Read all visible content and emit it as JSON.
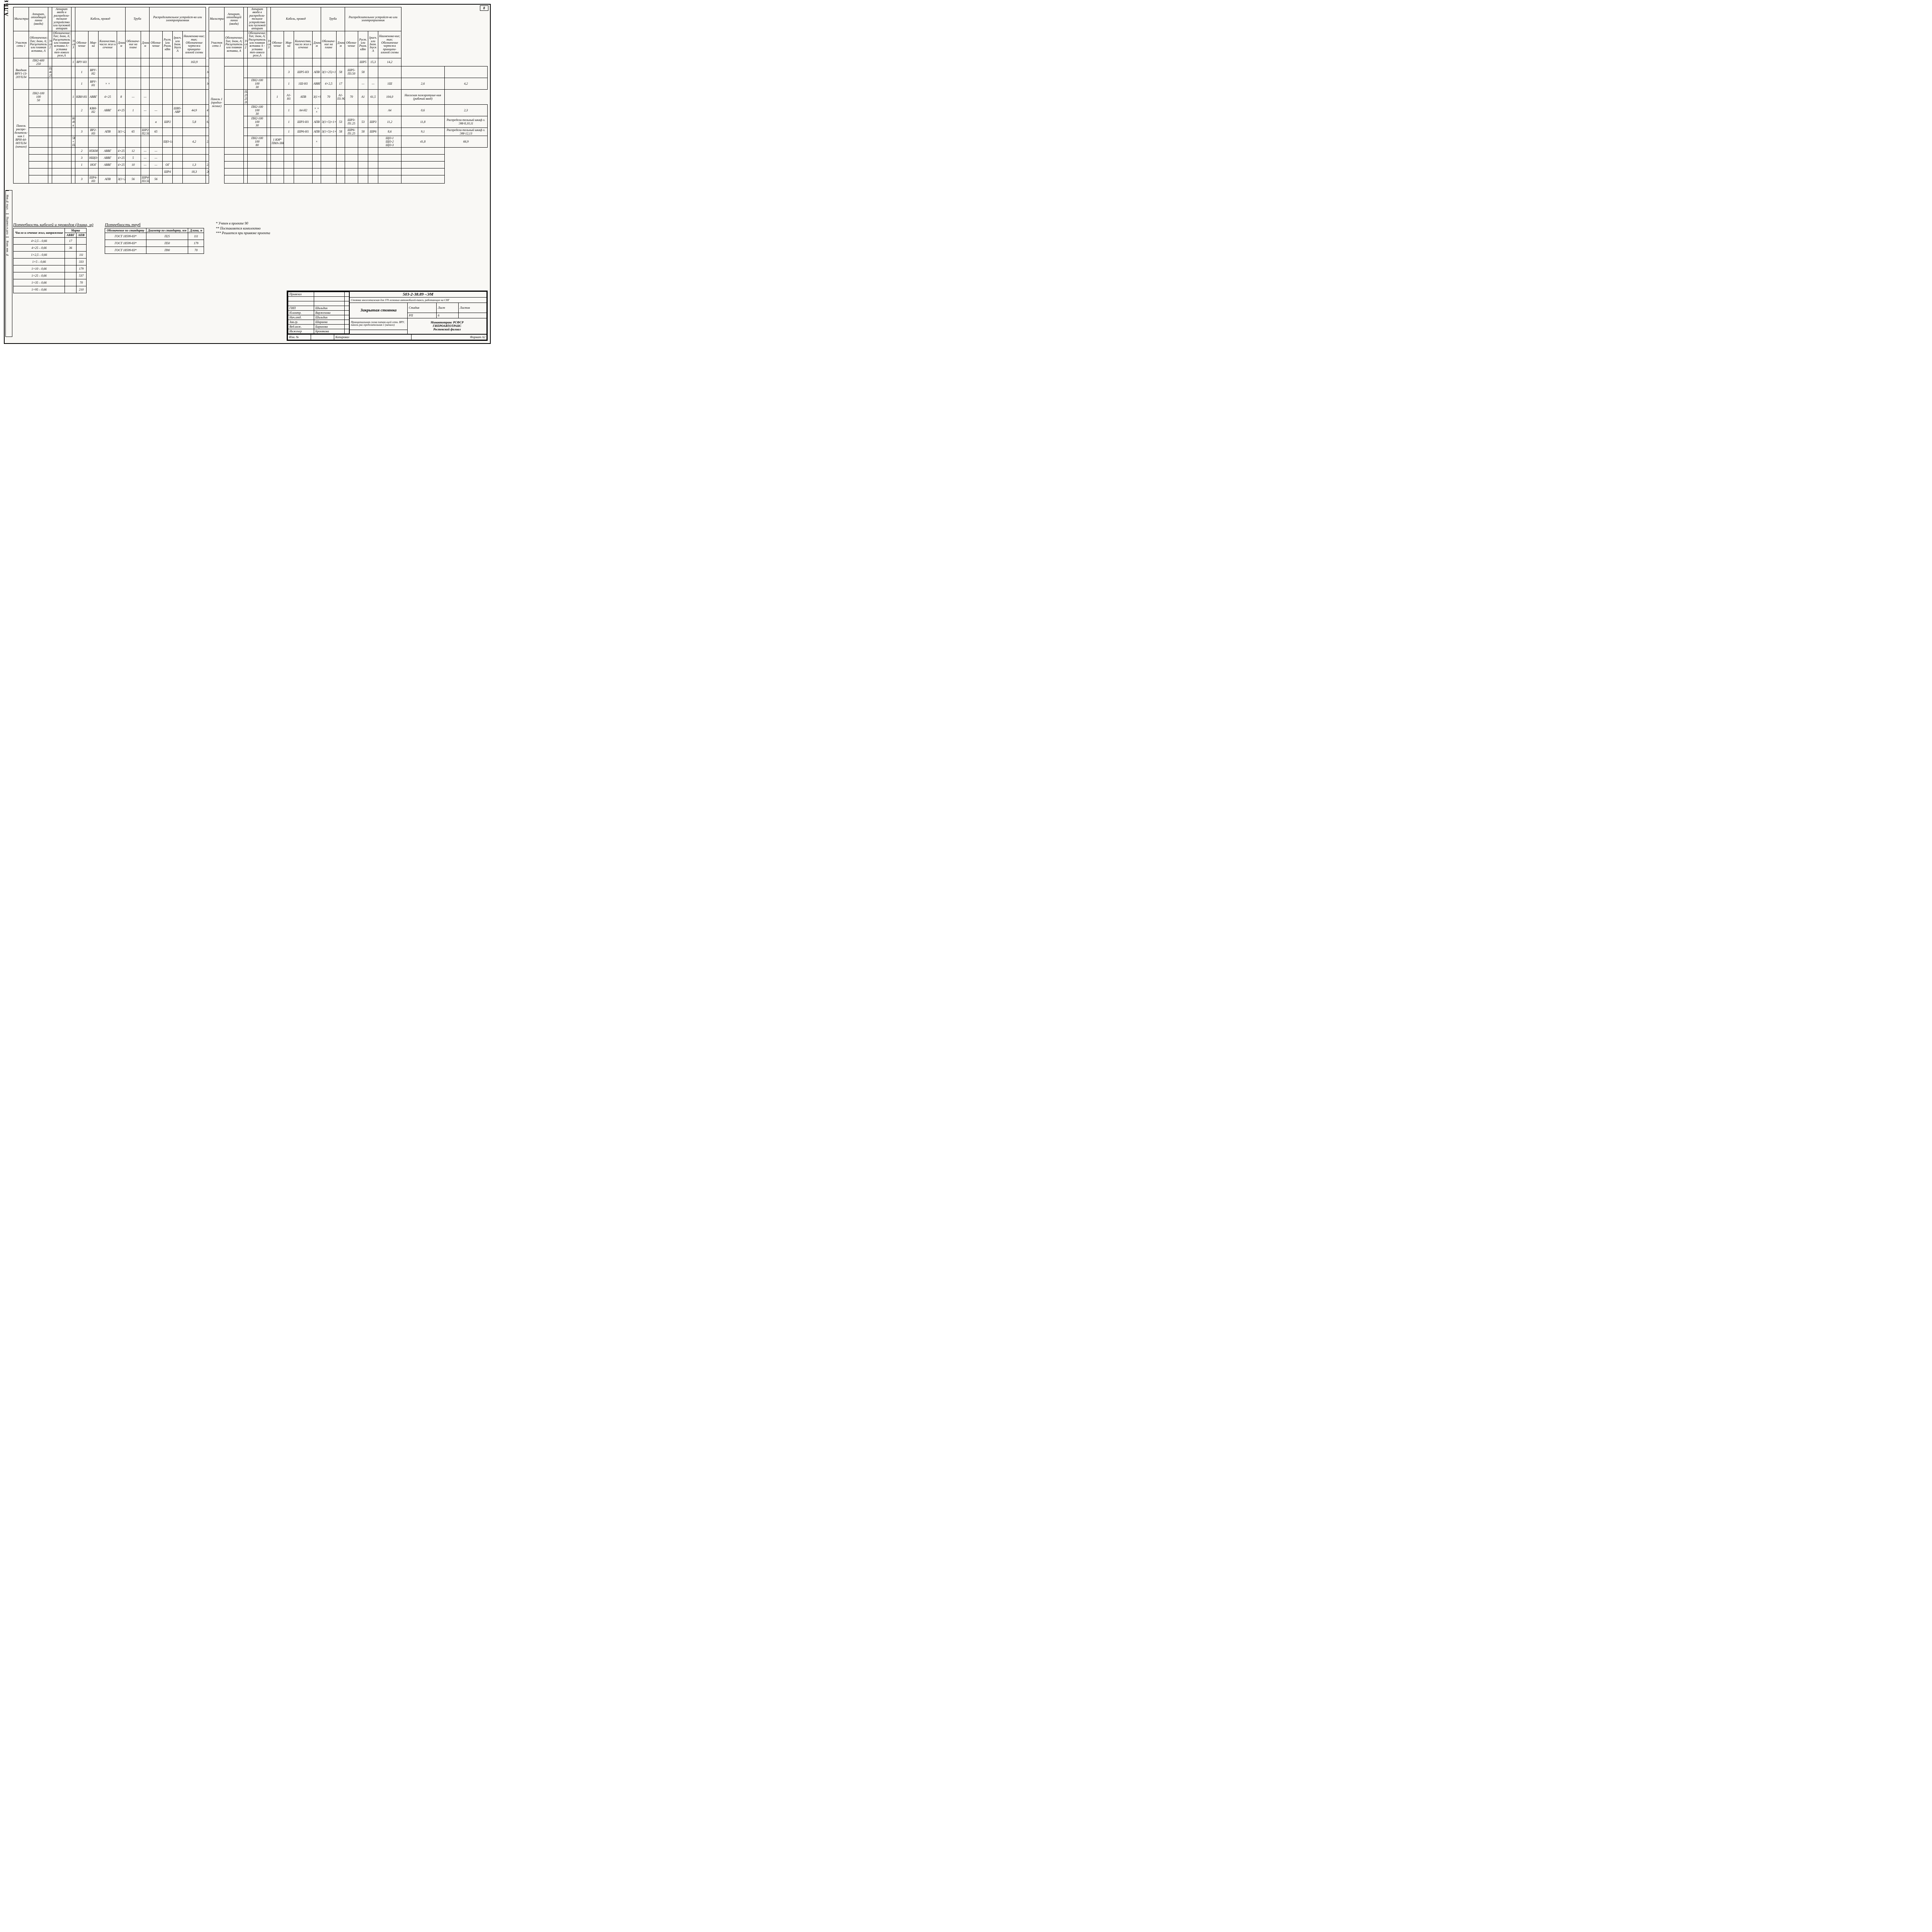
{
  "album_label": "АЛЬБОМ 2",
  "page_number": "8",
  "left_strip": [
    "Инв.№ подл.",
    "Подпись и дата",
    "Взам. инв. №"
  ],
  "header_groups": [
    "Магистраль",
    "Аппарат, отходящей линии (ввода)",
    "Аппарат ввода в распредели-тельное устройство или пусковой аппарат",
    "Кабель, провод",
    "Труба",
    "Распределительное устройст-во или электроприемник"
  ],
  "sub_headers": [
    "Участок сети 1",
    "Обозначение; Тип; Iном, А; Расцепитель или плавкая вставка, А",
    "Участок сети 2",
    "Обозначение; Тип; Iном, А; Расцепитель или плавкая вставка А - уставка теп-лового реле,А",
    "Участок сети 3",
    "Обозна-чение",
    "Мар-ка",
    "Количество, число жил и сечение",
    "Длина, м",
    "Обозначе-ние на плане",
    "Длина, м",
    "Обозна-чение",
    "Pуст. или Pном. кВт",
    "Iрасч. или Iном. Iпуск А",
    "Наименова-ние; тип; Обозначение чертежа принципи-альной схемы"
  ],
  "row_groups": [
    {
      "left_label": "Вводная ВРУ1-13-20УХЛ4",
      "rows": [
        {
          "c": [
            "",
            "ПН2-400\n250",
            "",
            "",
            "1",
            "ВРУ-Н1",
            "",
            "",
            "",
            "",
            "",
            "",
            "",
            "",
            "163,9",
            "205,1",
            "Ввод от"
          ]
        },
        {
          "c": [
            "",
            "ПН2-400\n250",
            "",
            "",
            "1",
            "ВРУ-Н2",
            "",
            "",
            "",
            "",
            "",
            "",
            "",
            "",
            "163,9",
            "205,1",
            "Ввод от"
          ]
        },
        {
          "c": [
            "",
            "",
            "",
            "",
            "1",
            "ВРУ-Н1",
            "× ×",
            "",
            "",
            "",
            "",
            "",
            "",
            "",
            "109,5",
            "134,3",
            "Ввод от ВРУ"
          ]
        }
      ]
    },
    {
      "left_label": "Панель распре-делитель-ная 1 ВРН-44-00УХЛ4 (начало)",
      "rows": [
        {
          "c": [
            "",
            "ПН2-100\n100\n50",
            "",
            "",
            "1",
            "КВН-Н1",
            "АВВГ",
            "4×25",
            "8",
            "—",
            "—",
            "",
            "",
            "",
            "",
            "",
            "Шкаф авто-матическо-"
          ]
        },
        {
          "c": [
            "",
            "",
            "",
            "",
            "2",
            "КВН-Н2",
            "АВВГ",
            "4×25",
            "1",
            "—",
            "—",
            "",
            "ШВ5-АВР",
            "44,9",
            "47,7",
            "",
            "го переклю-чения на резерв"
          ]
        },
        {
          "c": [
            "",
            "",
            "",
            "К01\n4994\nа",
            "",
            "",
            "",
            "",
            "",
            "",
            "а",
            "ШР2",
            "",
            "5,8",
            "6,0",
            "",
            "Распредели-тельный шкаф л. ЭМ-8,9"
          ]
        },
        {
          "c": [
            "",
            "",
            "",
            "",
            "3",
            "ВР2-Н3",
            "АПВ",
            "3(1×25)+1×10",
            "65",
            "ШР2-П2.50",
            "65",
            "",
            "",
            "",
            "",
            "",
            ""
          ]
        },
        {
          "c": [
            "",
            "",
            "",
            "5КМ +\nПМА-1Н002",
            "",
            "",
            "",
            "",
            "",
            "",
            "",
            "ЩО-1г",
            "",
            "4,2",
            "2,1",
            "",
            "Взрывобезо-пасное осве-щение л. 90-5"
          ]
        },
        {
          "c": [
            "",
            "",
            "",
            "",
            "2",
            "Н5КМ",
            "АВВГ",
            "4×25",
            "12",
            "—",
            "—",
            "",
            "",
            "",
            "",
            "",
            ""
          ]
        },
        {
          "c": [
            "",
            "",
            "",
            "",
            "3",
            "НЩО-1г",
            "АВВГ",
            "4×25",
            "5",
            "—",
            "—",
            "",
            "",
            "",
            "",
            "",
            ""
          ]
        },
        {
          "c": [
            "",
            "",
            "",
            "",
            "1",
            "НОГ",
            "АВВГ",
            "4×25",
            "10",
            "—",
            "—",
            "ОГ",
            "",
            "1,3",
            "2,2",
            "",
            "Световые указатели л. 90-5"
          ]
        },
        {
          "c": [
            "",
            "",
            "",
            "",
            "",
            "",
            "",
            "",
            "",
            "",
            "",
            "ШР4",
            "",
            "18,3",
            "20,4",
            "",
            "Распредели-тельный шкаф л. ЭМ-11"
          ]
        },
        {
          "c": [
            "",
            "",
            "",
            "",
            "3",
            "ШР4-Н3",
            "АПВ",
            "3(1×25)+1×10",
            "56",
            "ШР4-П3.50",
            "56",
            "",
            "",
            "",
            "",
            "",
            ""
          ]
        }
      ]
    }
  ],
  "right_panel_label": "Панель 1 (продол-жение)",
  "right_rows": [
    {
      "c": [
        "",
        "",
        "",
        "",
        "",
        "",
        "",
        "",
        "",
        "",
        "",
        "",
        "ШР5",
        "15,3",
        "14,2",
        "Распредели-тельный шкаф л. ЭМ-11,12"
      ]
    },
    {
      "c": [
        "",
        "",
        "",
        "",
        "3",
        "ШР5-Н3",
        "АПВ",
        "3(1×25)+1×10",
        "58",
        "ШР5-П3.50",
        "58",
        "",
        "",
        "",
        "",
        ""
      ]
    },
    {
      "c": [
        "",
        "ПН2-100\n100\n30",
        "",
        "",
        "1",
        "1Ш-Н1",
        "АВВГ",
        "4×2,5",
        "17",
        "",
        "—",
        "—",
        "1Ш",
        "2,6",
        "4,2",
        "Шкаф л. АСТ-10"
      ]
    },
    {
      "c": [
        "",
        "ПН2-250\n250\n200",
        "",
        "",
        "1",
        "А1-Н1",
        "АПВ",
        "3(1×95)+1×35",
        "70",
        "А1-П1.90",
        "70",
        "А1",
        "61,5",
        "104,0",
        "Насосная пожаротуше-ния (рабочий ввод)"
      ]
    },
    {
      "c": [
        "",
        "ПН2-100\n100\n30",
        "",
        "",
        "1",
        "А4-Н2",
        "× × ×",
        "",
        "",
        "",
        "",
        "",
        "А4",
        "0,6",
        "2,3",
        "Ящик (установл. в КПП)"
      ]
    },
    {
      "c": [
        "",
        "ПН2-100\n100\n30",
        "",
        "",
        "1",
        "ШР3-Н1",
        "АПВ",
        "3(1×5)+1×2,5",
        "53",
        "ШР3-П1.25",
        "53",
        "ШР3",
        "11,2",
        "11,8",
        "Распредели-тельный шкаф л. ЭМ-8,10,11"
      ]
    },
    {
      "c": [
        "",
        "",
        "",
        "",
        "1",
        "ШР6-Н1",
        "АПВ",
        "3(1×5)+1×2,5",
        "58",
        "ШР6-П1.25",
        "58",
        "ШР6",
        "8,6",
        "9,1",
        "Распредели-тельный шкаф л. ЭМ-12,13"
      ]
    },
    {
      "c": [
        "",
        "ПН2-100\n100\n80",
        "",
        "1 КМ*\nПМА-3Н002",
        "",
        "",
        "×",
        "",
        "",
        "",
        "",
        "",
        "ЩО-1\nЩО-2\nЩО-3",
        "41,8",
        "66,9",
        "Рабочее освещение л. 90-5"
      ]
    }
  ],
  "cable_need_title": "Потребность кабелей и проводов (длина, м)",
  "cable_table": {
    "headers": [
      "Число и сечение жил, напряжение",
      "АВВГ",
      "АПВ"
    ],
    "marka_label": "Марка",
    "rows": [
      [
        "4×2,5 – 0,66",
        "17",
        ""
      ],
      [
        "4×25 – 0,66",
        "36",
        ""
      ],
      [
        "1×2,5 – 0,66",
        "",
        "111"
      ],
      [
        "1×5 – 0,66",
        "",
        "333"
      ],
      [
        "1×10 – 0,66",
        "",
        "179"
      ],
      [
        "1×25 – 0,66",
        "",
        "537"
      ],
      [
        "1×35 – 0,66",
        "",
        "70"
      ],
      [
        "1×95 – 0,66",
        "",
        "210"
      ]
    ]
  },
  "pipe_need_title": "Потребность труб",
  "pipe_table": {
    "headers": [
      "Обозначение по стандарту",
      "Диаметр по стандарту, мм",
      "Длина, м"
    ],
    "rows": [
      [
        "ГОСТ 18599-83*",
        "П25",
        "111"
      ],
      [
        "ГОСТ 18599-83*",
        "П50",
        "179"
      ],
      [
        "ГОСТ 18599-83*",
        "П90",
        "70"
      ]
    ]
  },
  "notes": [
    "*  Учтен в проекте 90",
    "** Поставляется комплектно",
    "*** Решается при привязке проекта"
  ],
  "stamp": {
    "project_code": "503-2-38.89  –ЭМ",
    "line_a": "Стоянка многоэтажная для 370 легковых автомобилей-такси, работающих на СНГ",
    "title": "Закрытая стоянка",
    "subtitle": "Принципиальная схема питаю-щей сети. ВРУ, панель рас-пределительная 1 (начало)",
    "stage": "Стадия",
    "sheet_h": "Лист",
    "sheets_h": "Листов",
    "stage_v": "РП",
    "sheet": "6",
    "sheets": "",
    "org": "Минавтотранс РСФСР\nГИПРОАВТОТРАНС\nРостовский филиал",
    "roles": [
      [
        "Привязал",
        "",
        ""
      ],
      [
        "",
        "",
        ""
      ],
      [
        "",
        "",
        ""
      ],
      [
        "ГИП",
        "Шильдин",
        ""
      ],
      [
        "Н.контр.",
        "Варженова",
        ""
      ],
      [
        "Нач.отд.",
        "Шильдин",
        ""
      ],
      [
        "Зав.гр.",
        "Шараева",
        ""
      ],
      [
        "Вед.инж.",
        "Баринова",
        ""
      ],
      [
        "Инженер",
        "Бронякова",
        ""
      ]
    ],
    "izm_label": "Изм. №",
    "kop": "Копировал",
    "format": "Формат А2"
  }
}
